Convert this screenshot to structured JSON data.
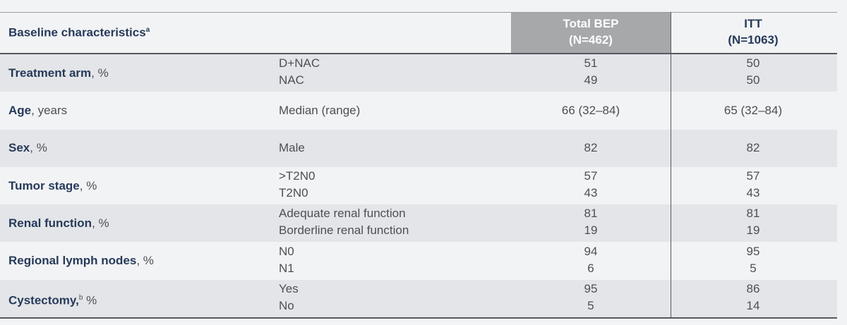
{
  "header": {
    "characteristic": "Baseline characteristics",
    "characteristic_note": "a",
    "columns": [
      {
        "name": "Total BEP",
        "n": "(N=462)"
      },
      {
        "name": "ITT",
        "n": "(N=1063)"
      }
    ]
  },
  "rows": [
    {
      "label": "Treatment arm",
      "unit": ", %",
      "items": [
        {
          "label": "D+NAC",
          "values": [
            51,
            50
          ]
        },
        {
          "label": "NAC",
          "values": [
            49,
            50
          ]
        }
      ]
    },
    {
      "label": "Age",
      "unit": ", years",
      "items": [
        {
          "label": "Median (range)",
          "values": [
            "66 (32–84)",
            "65 (32–84)"
          ]
        }
      ]
    },
    {
      "label": "Sex",
      "unit": ", %",
      "items": [
        {
          "label": "Male",
          "values": [
            82,
            82
          ]
        }
      ]
    },
    {
      "label": "Tumor stage",
      "unit": ", %",
      "items": [
        {
          "label": ">T2N0",
          "values": [
            57,
            57
          ]
        },
        {
          "label": "T2N0",
          "values": [
            43,
            43
          ]
        }
      ]
    },
    {
      "label": "Renal function",
      "unit": ", %",
      "items": [
        {
          "label": "Adequate renal function",
          "values": [
            81,
            81
          ]
        },
        {
          "label": "Borderline renal function",
          "values": [
            19,
            19
          ]
        }
      ]
    },
    {
      "label": "Regional lymph nodes",
      "unit": ", %",
      "items": [
        {
          "label": "N0",
          "values": [
            94,
            95
          ]
        },
        {
          "label": "N1",
          "values": [
            6,
            5
          ]
        }
      ]
    },
    {
      "label": "Cystectomy,",
      "note": "b",
      "unit": " %",
      "items": [
        {
          "label": "Yes",
          "values": [
            95,
            86
          ]
        },
        {
          "label": "No",
          "values": [
            5,
            14
          ]
        }
      ]
    }
  ]
}
